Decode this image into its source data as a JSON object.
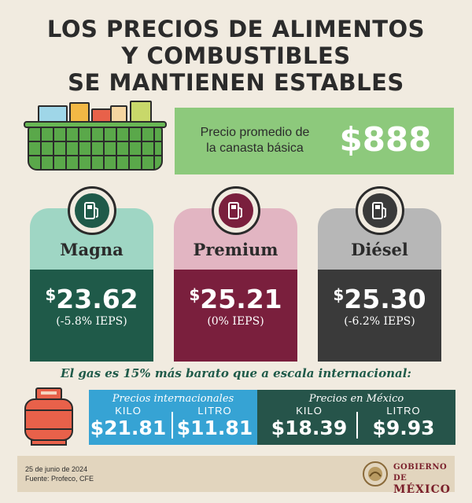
{
  "header": {
    "title_line1": "LOS PRECIOS DE ALIMENTOS",
    "title_line2": "Y COMBUSTIBLES",
    "title_line3": "SE MANTIENEN ESTABLES"
  },
  "canasta": {
    "label_line1": "Precio promedio de",
    "label_line2": "la canasta básica",
    "value": "$888"
  },
  "fuels": [
    {
      "name": "Magna",
      "currency": "$",
      "price": "23.62",
      "ieps": "(-5.8% IEPS)",
      "top_color": "#9fd6c4",
      "bottom_color": "#1f5a49",
      "icon": "fuel-pump-icon"
    },
    {
      "name": "Premium",
      "currency": "$",
      "price": "25.21",
      "ieps": "(0% IEPS)",
      "top_color": "#e2b5c2",
      "bottom_color": "#7a1f3d",
      "icon": "fuel-pump-icon"
    },
    {
      "name": "Diésel",
      "currency": "$",
      "price": "25.30",
      "ieps": "(-6.2% IEPS)",
      "top_color": "#b7b7b7",
      "bottom_color": "#3a3a3a",
      "icon": "fuel-pump-icon"
    }
  ],
  "gas": {
    "claim": "El gas es 15% más barato que a escala internacional:",
    "international": {
      "title": "Precios internacionales",
      "kilo_label": "KILO",
      "kilo_value": "$21.81",
      "litro_label": "LITRO",
      "litro_value": "$11.81"
    },
    "mexico": {
      "title": "Precios en México",
      "kilo_label": "KILO",
      "kilo_value": "$18.39",
      "litro_label": "LITRO",
      "litro_value": "$9.93"
    }
  },
  "footer": {
    "date": "25 de junio de 2024",
    "source": "Fuente: Profeco, CFE",
    "gov_line1": "GOBIERNO DE",
    "gov_line2": "MÉXICO"
  },
  "colors": {
    "background": "#f1ebe0",
    "canasta_green": "#8dc97c",
    "intl_blue": "#36a3d4",
    "mx_green": "#26544a",
    "gov_red": "#7a1f2b"
  }
}
